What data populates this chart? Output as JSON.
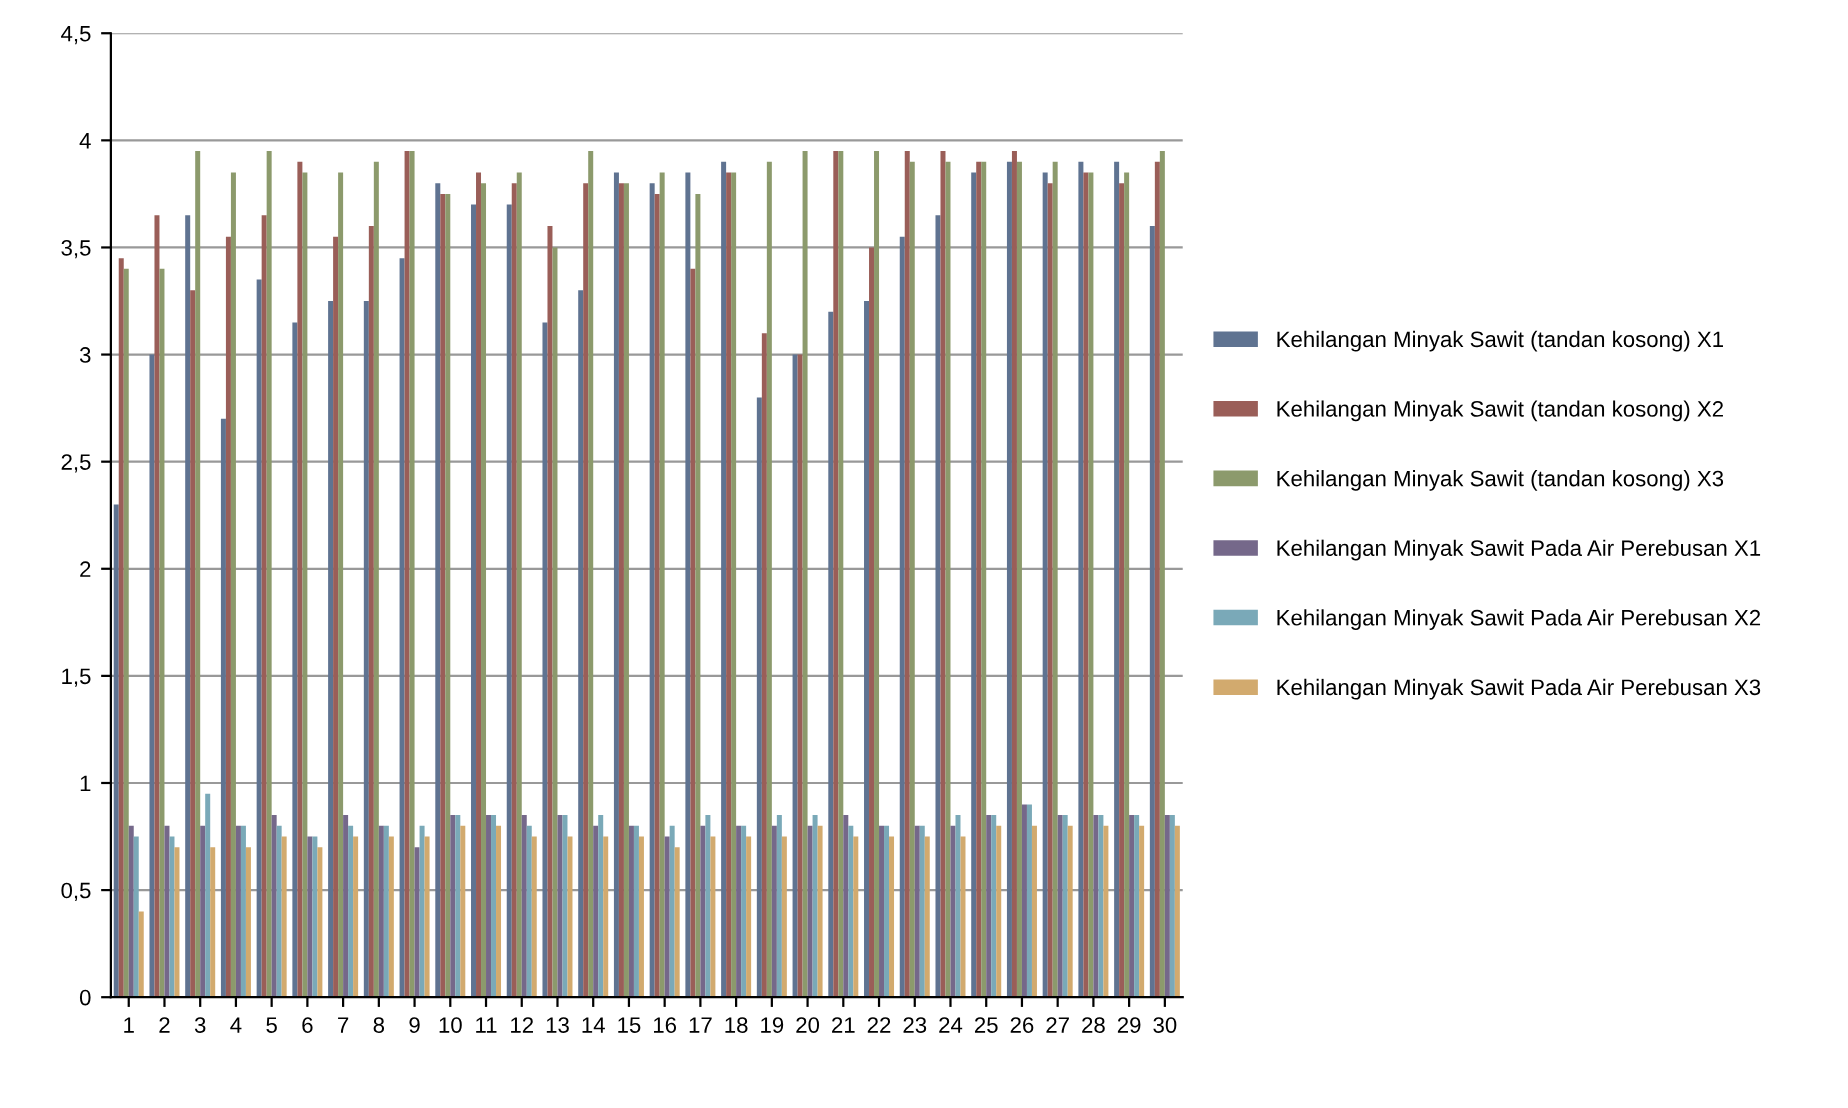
{
  "chart_data": {
    "type": "bar",
    "categories": [
      "1",
      "2",
      "3",
      "4",
      "5",
      "6",
      "7",
      "8",
      "9",
      "10",
      "11",
      "12",
      "13",
      "14",
      "15",
      "16",
      "17",
      "18",
      "19",
      "20",
      "21",
      "22",
      "23",
      "24",
      "25",
      "26",
      "27",
      "28",
      "29",
      "30"
    ],
    "series": [
      {
        "name": "Kehilangan Minyak Sawit (tandan kosong) X1",
        "color": "#5f7391",
        "values": [
          2.3,
          3.0,
          3.65,
          2.7,
          3.35,
          3.15,
          3.25,
          3.25,
          3.45,
          3.8,
          3.7,
          3.7,
          3.15,
          3.3,
          3.85,
          3.8,
          3.85,
          3.9,
          2.8,
          3.0,
          3.2,
          3.25,
          3.55,
          3.65,
          3.85,
          3.9,
          3.85,
          3.9,
          3.9,
          3.6
        ]
      },
      {
        "name": "Kehilangan Minyak Sawit (tandan kosong) X2",
        "color": "#9a5e58",
        "values": [
          3.45,
          3.65,
          3.3,
          3.55,
          3.65,
          3.9,
          3.55,
          3.6,
          3.95,
          3.75,
          3.85,
          3.8,
          3.6,
          3.8,
          3.8,
          3.75,
          3.4,
          3.85,
          3.1,
          3.0,
          3.95,
          3.5,
          3.95,
          3.95,
          3.9,
          3.95,
          3.8,
          3.85,
          3.8,
          3.9
        ]
      },
      {
        "name": "Kehilangan Minyak Sawit (tandan kosong) X3",
        "color": "#8c9a6c",
        "values": [
          3.4,
          3.4,
          3.95,
          3.85,
          3.95,
          3.85,
          3.85,
          3.9,
          3.95,
          3.75,
          3.8,
          3.85,
          3.5,
          3.95,
          3.8,
          3.85,
          3.75,
          3.85,
          3.9,
          3.95,
          3.95,
          3.95,
          3.9,
          3.9,
          3.9,
          3.9,
          3.9,
          3.85,
          3.85,
          3.95
        ]
      },
      {
        "name": "Kehilangan Minyak Sawit Pada Air Perebusan X1",
        "color": "#75688a",
        "values": [
          0.8,
          0.8,
          0.8,
          0.8,
          0.85,
          0.75,
          0.85,
          0.8,
          0.7,
          0.85,
          0.85,
          0.85,
          0.85,
          0.8,
          0.8,
          0.75,
          0.8,
          0.8,
          0.8,
          0.8,
          0.85,
          0.8,
          0.8,
          0.8,
          0.85,
          0.9,
          0.85,
          0.85,
          0.85,
          0.85
        ]
      },
      {
        "name": "Kehilangan Minyak Sawit Pada Air Perebusan X2",
        "color": "#7aa9b8",
        "values": [
          0.75,
          0.75,
          0.95,
          0.8,
          0.8,
          0.75,
          0.8,
          0.8,
          0.8,
          0.85,
          0.85,
          0.8,
          0.85,
          0.85,
          0.8,
          0.8,
          0.85,
          0.8,
          0.85,
          0.85,
          0.8,
          0.8,
          0.8,
          0.85,
          0.85,
          0.9,
          0.85,
          0.85,
          0.85,
          0.85
        ]
      },
      {
        "name": "Kehilangan Minyak Sawit Pada Air Perebusan X3",
        "color": "#d2aa6e",
        "values": [
          0.4,
          0.7,
          0.7,
          0.7,
          0.75,
          0.7,
          0.75,
          0.75,
          0.75,
          0.8,
          0.8,
          0.75,
          0.75,
          0.75,
          0.75,
          0.7,
          0.75,
          0.75,
          0.75,
          0.8,
          0.75,
          0.75,
          0.75,
          0.75,
          0.8,
          0.8,
          0.8,
          0.8,
          0.8,
          0.8
        ]
      }
    ],
    "ylim": [
      0,
      4.5
    ],
    "yticks": [
      0,
      {
        "value": 0.5,
        "label": "0,5"
      },
      1,
      {
        "value": 1.5,
        "label": "1,5"
      },
      2,
      {
        "value": 2.5,
        "label": "2,5"
      },
      3,
      {
        "value": 3.5,
        "label": "3,5"
      },
      4,
      {
        "value": 4.5,
        "label": "4,5"
      }
    ],
    "grid": "y",
    "legend": "right"
  }
}
